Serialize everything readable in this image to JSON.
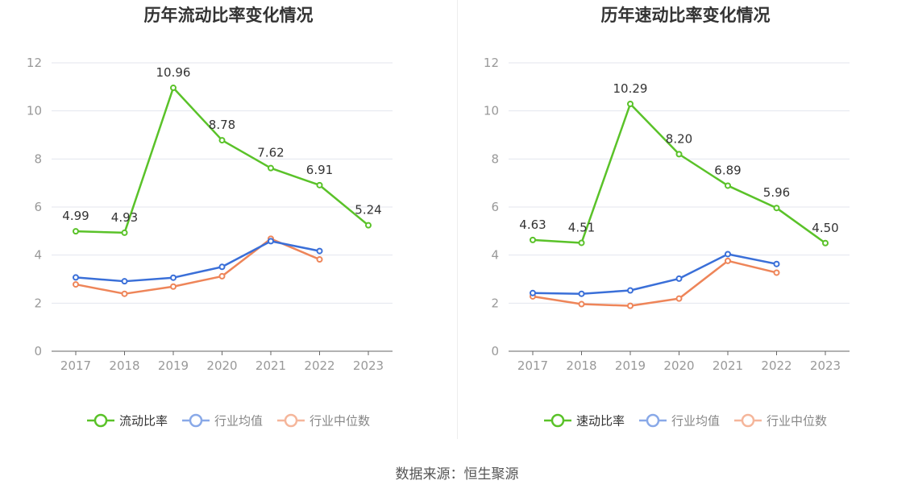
{
  "footer": {
    "source": "数据来源：恒生聚源"
  },
  "colors": {
    "primary": "#5ac229",
    "average": "#3a6fd8",
    "median": "#ee8559"
  },
  "chart_data": [
    {
      "type": "line",
      "title": "历年流动比率变化情况",
      "categories": [
        "2017",
        "2018",
        "2019",
        "2020",
        "2021",
        "2022",
        "2023"
      ],
      "ylim": [
        0,
        12
      ],
      "yticks": [
        0,
        2,
        4,
        6,
        8,
        10,
        12
      ],
      "grid": true,
      "legend_position": "bottom",
      "series": [
        {
          "name": "流动比率",
          "values": [
            4.99,
            4.93,
            10.96,
            8.78,
            7.62,
            6.91,
            5.24
          ],
          "labels": [
            "4.99",
            "4.93",
            "10.96",
            "8.78",
            "7.62",
            "6.91",
            "5.24"
          ]
        },
        {
          "name": "行业均值",
          "values": [
            3.07,
            2.91,
            3.06,
            3.51,
            4.58,
            4.17,
            null
          ]
        },
        {
          "name": "行业中位数",
          "values": [
            2.78,
            2.39,
            2.69,
            3.12,
            4.68,
            3.82,
            null
          ]
        }
      ]
    },
    {
      "type": "line",
      "title": "历年速动比率变化情况",
      "categories": [
        "2017",
        "2018",
        "2019",
        "2020",
        "2021",
        "2022",
        "2023"
      ],
      "ylim": [
        0,
        12
      ],
      "yticks": [
        0,
        2,
        4,
        6,
        8,
        10,
        12
      ],
      "grid": true,
      "legend_position": "bottom",
      "series": [
        {
          "name": "速动比率",
          "values": [
            4.63,
            4.51,
            10.29,
            8.2,
            6.89,
            5.96,
            4.5
          ],
          "labels": [
            "4.63",
            "4.51",
            "10.29",
            "8.20",
            "6.89",
            "5.96",
            "4.50"
          ]
        },
        {
          "name": "行业均值",
          "values": [
            2.42,
            2.39,
            2.53,
            3.02,
            4.04,
            3.63,
            null
          ]
        },
        {
          "name": "行业中位数",
          "values": [
            2.28,
            1.96,
            1.89,
            2.19,
            3.76,
            3.27,
            null
          ]
        }
      ]
    }
  ]
}
